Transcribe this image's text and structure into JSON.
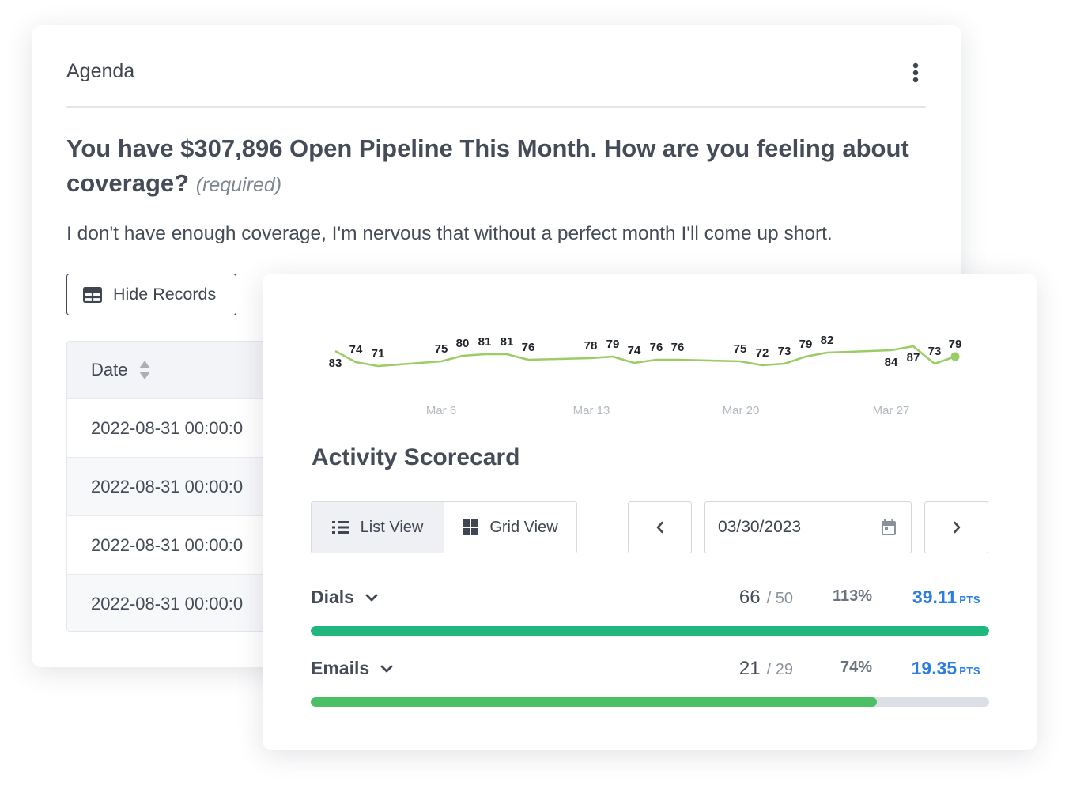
{
  "agenda": {
    "title": "Agenda",
    "question": "You have $307,896 Open Pipeline This Month. How are you feeling about coverage?",
    "required_label": "(required)",
    "answer": "I don't have enough coverage, I'm nervous that without a perfect month I'll come up short.",
    "hide_records_label": "Hide Records",
    "table": {
      "column_header": "Date",
      "rows": [
        "2022-08-31 00:00:0",
        "2022-08-31 00:00:0",
        "2022-08-31 00:00:0",
        "2022-08-31 00:00:0"
      ]
    }
  },
  "icons": {
    "more": "more-vertical-icon",
    "table": "table-icon",
    "sort": "sort-icon",
    "list": "list-icon",
    "grid": "grid-icon",
    "prev": "chevron-left-icon",
    "next": "chevron-right-icon",
    "calendar": "calendar-icon",
    "metric_expand": "chevron-down-icon"
  },
  "chart_data": {
    "type": "line",
    "x_tick_labels": [
      "Mar 6",
      "Mar 13",
      "Mar 20",
      "Mar 27"
    ],
    "values": [
      83,
      74,
      71,
      75,
      80,
      81,
      81,
      76,
      78,
      79,
      74,
      76,
      76,
      75,
      72,
      73,
      79,
      82,
      84,
      87,
      73,
      79
    ],
    "line_color": "#9ccc65",
    "last_point_marker": true,
    "grid": false,
    "legend": "none"
  },
  "scorecard": {
    "title": "Activity Scorecard",
    "list_view_label": "List View",
    "grid_view_label": "Grid View",
    "date_value": "03/30/2023",
    "metrics": [
      {
        "name": "Dials",
        "value": "66",
        "goal": "50",
        "percent": "113%",
        "points": "39.11",
        "points_unit": "PTS",
        "progress": 1.0,
        "color": "#1fb77d"
      },
      {
        "name": "Emails",
        "value": "21",
        "goal": "29",
        "percent": "74%",
        "points": "19.35",
        "points_unit": "PTS",
        "progress": 0.834,
        "color": "#4cc067"
      }
    ]
  },
  "colors": {
    "accent_blue": "#2a7de1",
    "text_dark": "#3f4651"
  }
}
